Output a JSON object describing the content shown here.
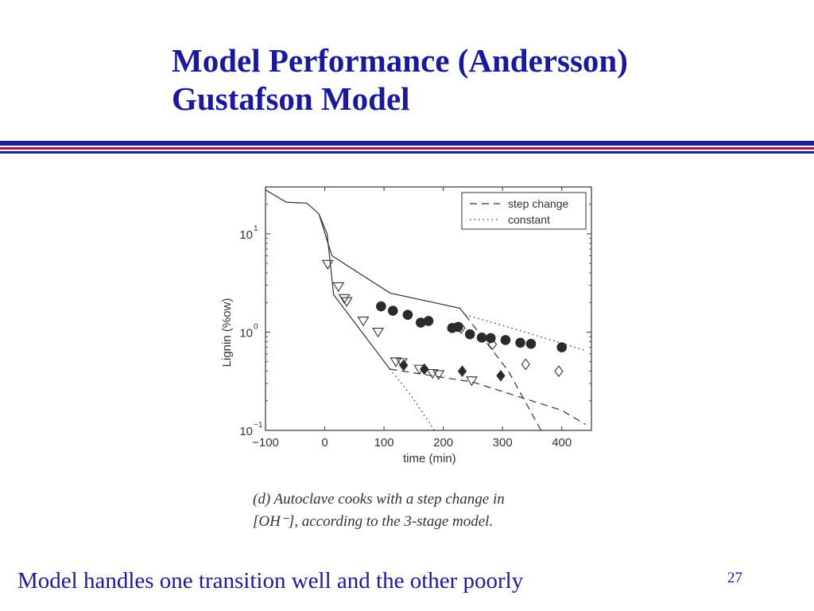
{
  "slide": {
    "title_line1": "Model Performance (Andersson)",
    "title_line2": "Gustafson Model",
    "footer": "Model handles one transition well and the other poorly",
    "page_number": "27",
    "colors": {
      "title": "#1a1a99",
      "rule_blue": "#1c1c9e",
      "rule_red": "#b01050"
    }
  },
  "figure": {
    "caption_line1": "(d) Autoclave cooks with a step change in",
    "caption_line2": "[OH⁻], according to the 3-stage model."
  },
  "chart_data": {
    "type": "line",
    "xlabel": "time (min)",
    "ylabel": "Lignin (%ow)",
    "xlim": [
      -100,
      450
    ],
    "ylim": [
      0.1,
      30
    ],
    "yscale": "log",
    "x_ticks": [
      -100,
      0,
      100,
      200,
      300,
      400
    ],
    "x_tick_labels": [
      "−100",
      "0",
      "100",
      "200",
      "300",
      "400"
    ],
    "y_ticks": [
      0.1,
      1,
      10
    ],
    "y_tick_labels": [
      {
        "base": "10",
        "exp": "−1"
      },
      {
        "base": "10",
        "exp": "0"
      },
      {
        "base": "10",
        "exp": "1"
      }
    ],
    "legend": {
      "position": "top-right",
      "entries": [
        {
          "label": "step change",
          "style": "dashed"
        },
        {
          "label": "constant",
          "style": "dotted"
        }
      ]
    },
    "series": [
      {
        "style": "solid",
        "points": [
          [
            -100,
            28
          ],
          [
            -65,
            21
          ],
          [
            -30,
            20.5
          ],
          [
            -10,
            16
          ],
          [
            12,
            6
          ],
          [
            110,
            2.5
          ],
          [
            228,
            1.75
          ],
          [
            237,
            1.5
          ]
        ]
      },
      {
        "style": "solid",
        "points": [
          [
            -10,
            16
          ],
          [
            4,
            10
          ],
          [
            15,
            2.4
          ],
          [
            110,
            0.42
          ]
        ]
      },
      {
        "style": "dashed",
        "points": [
          [
            237,
            1.5
          ],
          [
            310,
            0.4
          ],
          [
            365,
            0.1
          ]
        ]
      },
      {
        "style": "dashed",
        "points": [
          [
            110,
            0.42
          ],
          [
            250,
            0.31
          ],
          [
            400,
            0.16
          ],
          [
            440,
            0.115
          ]
        ]
      },
      {
        "style": "dotted",
        "points": [
          [
            237,
            1.5
          ],
          [
            320,
            1.08
          ],
          [
            440,
            0.65
          ]
        ]
      },
      {
        "style": "dotted",
        "points": [
          [
            110,
            0.42
          ],
          [
            145,
            0.23
          ],
          [
            185,
            0.1
          ]
        ]
      },
      {
        "marker": "filled-circle",
        "points": [
          [
            95,
            1.83
          ],
          [
            115,
            1.65
          ],
          [
            140,
            1.5
          ],
          [
            162,
            1.25
          ],
          [
            175,
            1.3
          ],
          [
            215,
            1.1
          ],
          [
            225,
            1.13
          ],
          [
            245,
            0.95
          ],
          [
            265,
            0.88
          ],
          [
            280,
            0.87
          ],
          [
            305,
            0.83
          ],
          [
            330,
            0.78
          ],
          [
            348,
            0.76
          ],
          [
            400,
            0.7
          ]
        ]
      },
      {
        "marker": "open-triangle-down",
        "points": [
          [
            5,
            4.9
          ],
          [
            23,
            2.9
          ],
          [
            33,
            2.2
          ],
          [
            37,
            2.05
          ],
          [
            65,
            1.3
          ],
          [
            90,
            1.0
          ],
          [
            120,
            0.5
          ],
          [
            130,
            0.49
          ],
          [
            160,
            0.42
          ],
          [
            182,
            0.38
          ],
          [
            192,
            0.37
          ],
          [
            248,
            0.32
          ]
        ]
      },
      {
        "marker": "filled-diamond",
        "points": [
          [
            133,
            0.46
          ],
          [
            168,
            0.42
          ],
          [
            232,
            0.4
          ],
          [
            297,
            0.36
          ]
        ]
      },
      {
        "marker": "open-diamond",
        "points": [
          [
            230,
            1.1
          ],
          [
            283,
            0.75
          ],
          [
            339,
            0.47
          ],
          [
            395,
            0.4
          ]
        ]
      }
    ]
  }
}
